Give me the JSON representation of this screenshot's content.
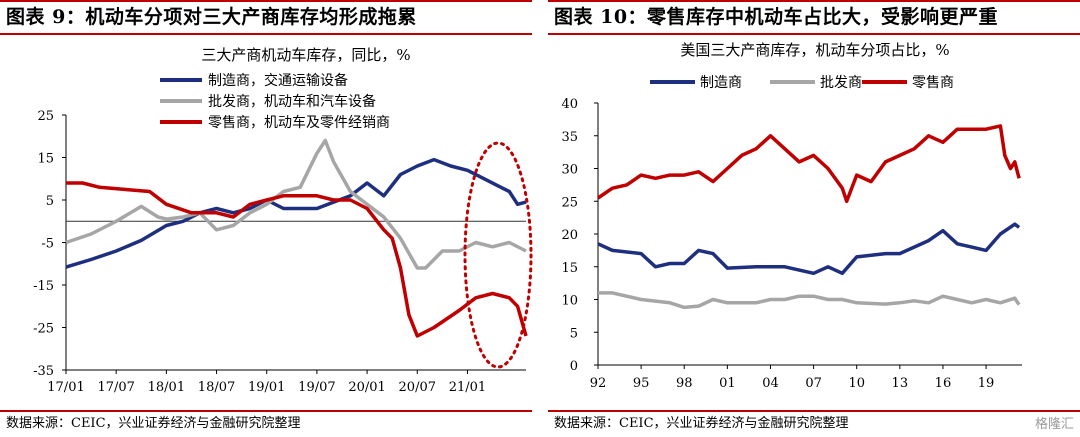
{
  "header": {
    "left_title": "图表 9：机动车分项对三大产商库存均形成拖累",
    "right_title": "图表 10：零售库存中机动车占比大，受影响更严重"
  },
  "footer": {
    "left_source": "数据来源：CEIC，兴业证券经济与金融研究院整理",
    "right_source": "数据来源：CEIC，兴业证券经济与金融研究院整理",
    "watermark": "格隆汇"
  },
  "chart_data": [
    {
      "type": "line",
      "title": "三大产商机动车库存，同比，%",
      "ylim": [
        -35,
        25
      ],
      "yticks": [
        25,
        15,
        5,
        -5,
        -15,
        -25,
        -35
      ],
      "xlabels": [
        "17/01",
        "17/07",
        "18/01",
        "18/07",
        "19/01",
        "19/07",
        "20/01",
        "20/07",
        "21/01"
      ],
      "x_start_year": 2017,
      "x_start_month": 1,
      "x_span_months": 55,
      "zero_line": true,
      "legend_position": "top-left",
      "series": [
        {
          "name": "制造商，交通运输设备",
          "color": "#1f2f7f",
          "values": [
            [
              0,
              -10.8
            ],
            [
              3,
              -9
            ],
            [
              6,
              -7
            ],
            [
              9,
              -4.5
            ],
            [
              12,
              -1
            ],
            [
              14,
              0
            ],
            [
              16,
              2
            ],
            [
              18,
              3
            ],
            [
              20,
              2
            ],
            [
              22,
              3
            ],
            [
              24,
              5
            ],
            [
              26,
              3
            ],
            [
              28,
              3
            ],
            [
              30,
              3
            ],
            [
              32,
              4.5
            ],
            [
              34,
              6
            ],
            [
              36,
              9
            ],
            [
              38,
              6
            ],
            [
              40,
              11
            ],
            [
              42,
              13
            ],
            [
              44,
              14.5
            ],
            [
              46,
              13
            ],
            [
              48,
              12
            ],
            [
              50,
              10
            ],
            [
              52,
              8
            ],
            [
              53,
              7
            ],
            [
              54,
              4
            ],
            [
              55,
              4.5
            ]
          ]
        },
        {
          "name": "批发商，机动车和汽车设备",
          "color": "#a6a6a6",
          "values": [
            [
              0,
              -5
            ],
            [
              3,
              -3
            ],
            [
              6,
              0
            ],
            [
              9,
              3.5
            ],
            [
              11,
              1
            ],
            [
              12,
              0.5
            ],
            [
              14,
              1
            ],
            [
              16,
              2
            ],
            [
              18,
              -2
            ],
            [
              20,
              -1
            ],
            [
              22,
              2
            ],
            [
              24,
              4
            ],
            [
              26,
              7
            ],
            [
              28,
              8
            ],
            [
              30,
              16
            ],
            [
              31,
              19
            ],
            [
              32,
              14
            ],
            [
              34,
              7
            ],
            [
              36,
              4
            ],
            [
              38,
              1
            ],
            [
              40,
              -4
            ],
            [
              42,
              -11
            ],
            [
              43,
              -11
            ],
            [
              45,
              -7
            ],
            [
              47,
              -7
            ],
            [
              49,
              -5
            ],
            [
              51,
              -6
            ],
            [
              53,
              -5
            ],
            [
              55,
              -7
            ]
          ]
        },
        {
          "name": "零售商，机动车及零件经销商",
          "color": "#c00000",
          "values": [
            [
              0,
              9
            ],
            [
              2,
              9
            ],
            [
              4,
              8
            ],
            [
              7,
              7.5
            ],
            [
              10,
              7
            ],
            [
              12,
              4
            ],
            [
              15,
              2
            ],
            [
              18,
              2
            ],
            [
              20,
              1
            ],
            [
              22,
              4
            ],
            [
              24,
              5
            ],
            [
              26,
              6
            ],
            [
              28,
              6
            ],
            [
              30,
              6
            ],
            [
              32,
              5
            ],
            [
              34,
              5
            ],
            [
              36,
              3
            ],
            [
              38,
              -2
            ],
            [
              39,
              -4
            ],
            [
              40,
              -11
            ],
            [
              41,
              -22
            ],
            [
              42,
              -27
            ],
            [
              44,
              -25
            ],
            [
              47,
              -21
            ],
            [
              49,
              -18
            ],
            [
              51,
              -17
            ],
            [
              53,
              -18
            ],
            [
              54,
              -20
            ],
            [
              55,
              -27
            ]
          ]
        }
      ],
      "annotation": "dotted red ellipse around 2021 data"
    },
    {
      "type": "line",
      "title": "美国三大产商库存，机动车分项占比，%",
      "ylim": [
        0,
        40
      ],
      "yticks": [
        40,
        35,
        30,
        25,
        20,
        15,
        10,
        5,
        0
      ],
      "xlabels": [
        "92",
        "95",
        "98",
        "01",
        "04",
        "07",
        "10",
        "13",
        "16",
        "19"
      ],
      "x_start_year": 1992,
      "x_end_year": 2021.5,
      "legend_position": "top",
      "series": [
        {
          "name": "制造商",
          "color": "#1f2f7f",
          "values": [
            [
              1992,
              18.5
            ],
            [
              1993,
              17.5
            ],
            [
              1995,
              17
            ],
            [
              1996,
              15
            ],
            [
              1997,
              15.5
            ],
            [
              1998,
              15.5
            ],
            [
              1999,
              17.5
            ],
            [
              2000,
              17
            ],
            [
              2001,
              14.8
            ],
            [
              2003,
              15
            ],
            [
              2004,
              15
            ],
            [
              2005,
              15
            ],
            [
              2007,
              14
            ],
            [
              2008,
              15
            ],
            [
              2009,
              14
            ],
            [
              2010,
              16.5
            ],
            [
              2012,
              17
            ],
            [
              2013,
              17
            ],
            [
              2015,
              19
            ],
            [
              2016,
              20.5
            ],
            [
              2017,
              18.5
            ],
            [
              2018,
              18
            ],
            [
              2019,
              17.5
            ],
            [
              2020,
              20
            ],
            [
              2021,
              21.5
            ],
            [
              2021.3,
              21
            ]
          ]
        },
        {
          "name": "批发商",
          "color": "#a6a6a6",
          "values": [
            [
              1992,
              11
            ],
            [
              1993,
              11
            ],
            [
              1995,
              10
            ],
            [
              1997,
              9.5
            ],
            [
              1998,
              8.8
            ],
            [
              1999,
              9
            ],
            [
              2000,
              10
            ],
            [
              2001,
              9.5
            ],
            [
              2003,
              9.5
            ],
            [
              2004,
              10
            ],
            [
              2005,
              10
            ],
            [
              2006,
              10.5
            ],
            [
              2007,
              10.5
            ],
            [
              2008,
              10
            ],
            [
              2009,
              10
            ],
            [
              2010,
              9.5
            ],
            [
              2012,
              9.3
            ],
            [
              2013,
              9.5
            ],
            [
              2014,
              9.8
            ],
            [
              2015,
              9.5
            ],
            [
              2016,
              10.5
            ],
            [
              2017,
              10
            ],
            [
              2018,
              9.5
            ],
            [
              2019,
              10
            ],
            [
              2020,
              9.5
            ],
            [
              2021,
              10.2
            ],
            [
              2021.3,
              9.2
            ]
          ]
        },
        {
          "name": "零售商",
          "color": "#c00000",
          "values": [
            [
              1992,
              25.5
            ],
            [
              1993,
              27
            ],
            [
              1994,
              27.5
            ],
            [
              1995,
              29
            ],
            [
              1996,
              28.5
            ],
            [
              1997,
              29
            ],
            [
              1998,
              29
            ],
            [
              1999,
              29.5
            ],
            [
              2000,
              28
            ],
            [
              2001,
              30
            ],
            [
              2002,
              32
            ],
            [
              2003,
              33
            ],
            [
              2004,
              35
            ],
            [
              2005,
              33
            ],
            [
              2006,
              31
            ],
            [
              2007,
              32
            ],
            [
              2008,
              30
            ],
            [
              2009,
              27
            ],
            [
              2009.3,
              25
            ],
            [
              2010,
              29
            ],
            [
              2011,
              28
            ],
            [
              2012,
              31
            ],
            [
              2013,
              32
            ],
            [
              2014,
              33
            ],
            [
              2015,
              35
            ],
            [
              2016,
              34
            ],
            [
              2017,
              36
            ],
            [
              2018,
              36
            ],
            [
              2019,
              36
            ],
            [
              2020,
              36.5
            ],
            [
              2020.3,
              32
            ],
            [
              2020.7,
              30
            ],
            [
              2021,
              31
            ],
            [
              2021.3,
              28.5
            ]
          ]
        }
      ]
    }
  ]
}
